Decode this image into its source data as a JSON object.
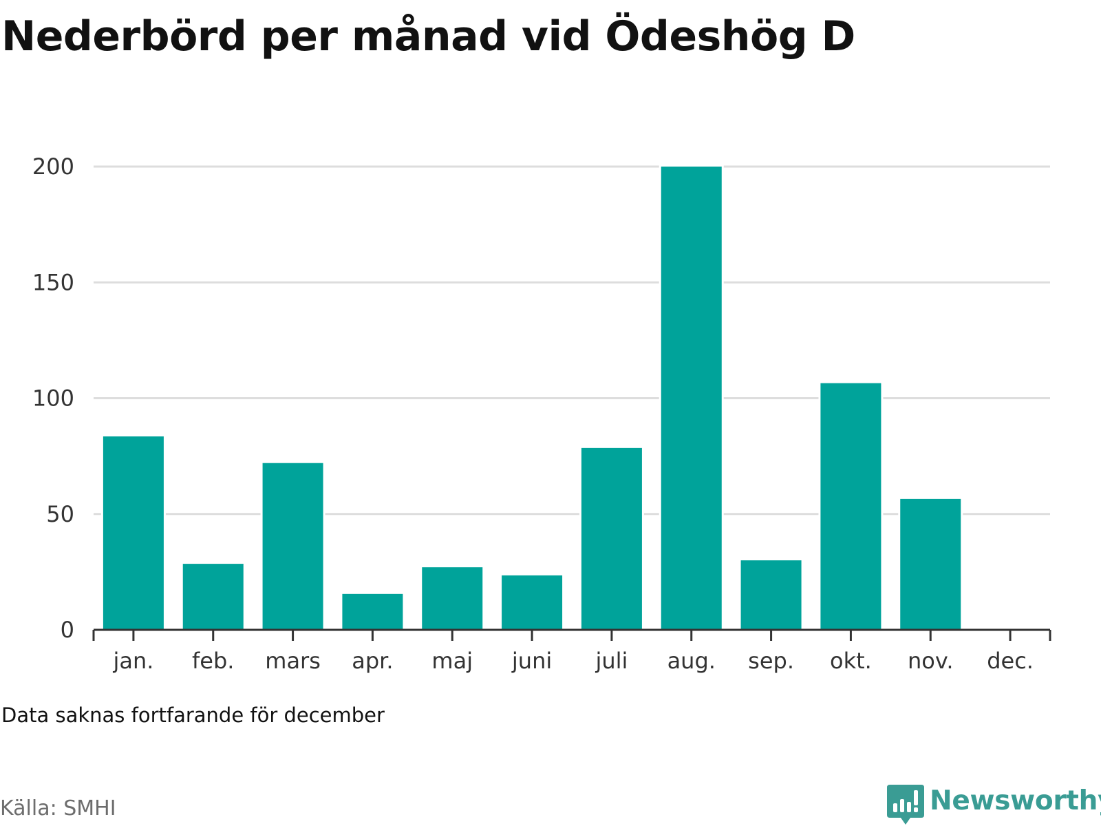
{
  "title": "Nederbörd per månad vid Ödeshög D",
  "note": "Data saknas fortfarande för december",
  "source": "Källa: SMHI",
  "logo": {
    "text": "Newsworthy",
    "icon": "newsworthy-logo-icon"
  },
  "colors": {
    "bar": "#00a39a",
    "grid": "#dddddd",
    "axis": "#333333",
    "logo": "#3a9c94"
  },
  "chart_data": {
    "type": "bar",
    "categories": [
      "jan.",
      "feb.",
      "mars",
      "apr.",
      "maj",
      "juni",
      "juli",
      "aug.",
      "sep.",
      "okt.",
      "nov.",
      "dec."
    ],
    "values": [
      83.5,
      28.5,
      72,
      15.5,
      27,
      23.5,
      78.5,
      200,
      30,
      106.5,
      56.5,
      null
    ],
    "title": "Nederbörd per månad vid Ödeshög D",
    "xlabel": "",
    "ylabel": "",
    "ylim": [
      0,
      200
    ],
    "yticks": [
      0,
      50,
      100,
      150,
      200
    ],
    "grid": true,
    "legend": "none"
  }
}
